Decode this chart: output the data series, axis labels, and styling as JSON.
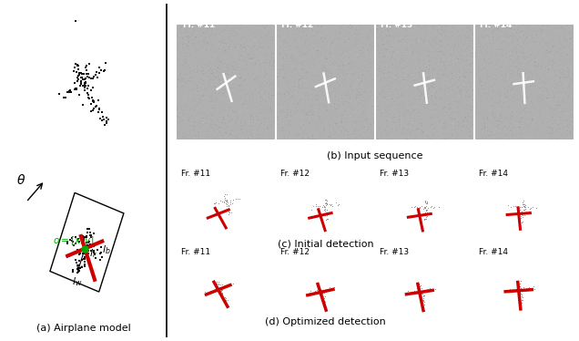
{
  "panel_a_label": "(a) Airplane model",
  "panel_b_label": "(b) Input sequence",
  "panel_c_label": "(c) Initial detection",
  "panel_d_label": "(d) Optimized detection",
  "frame_labels": [
    "Fr. #11",
    "Fr. #12",
    "Fr. #13",
    "Fr. #14"
  ],
  "bg_color": "#ffffff",
  "red_color": "#cc0000",
  "green_color": "#00aa00",
  "black_color": "#000000",
  "theta_label": "θ"
}
